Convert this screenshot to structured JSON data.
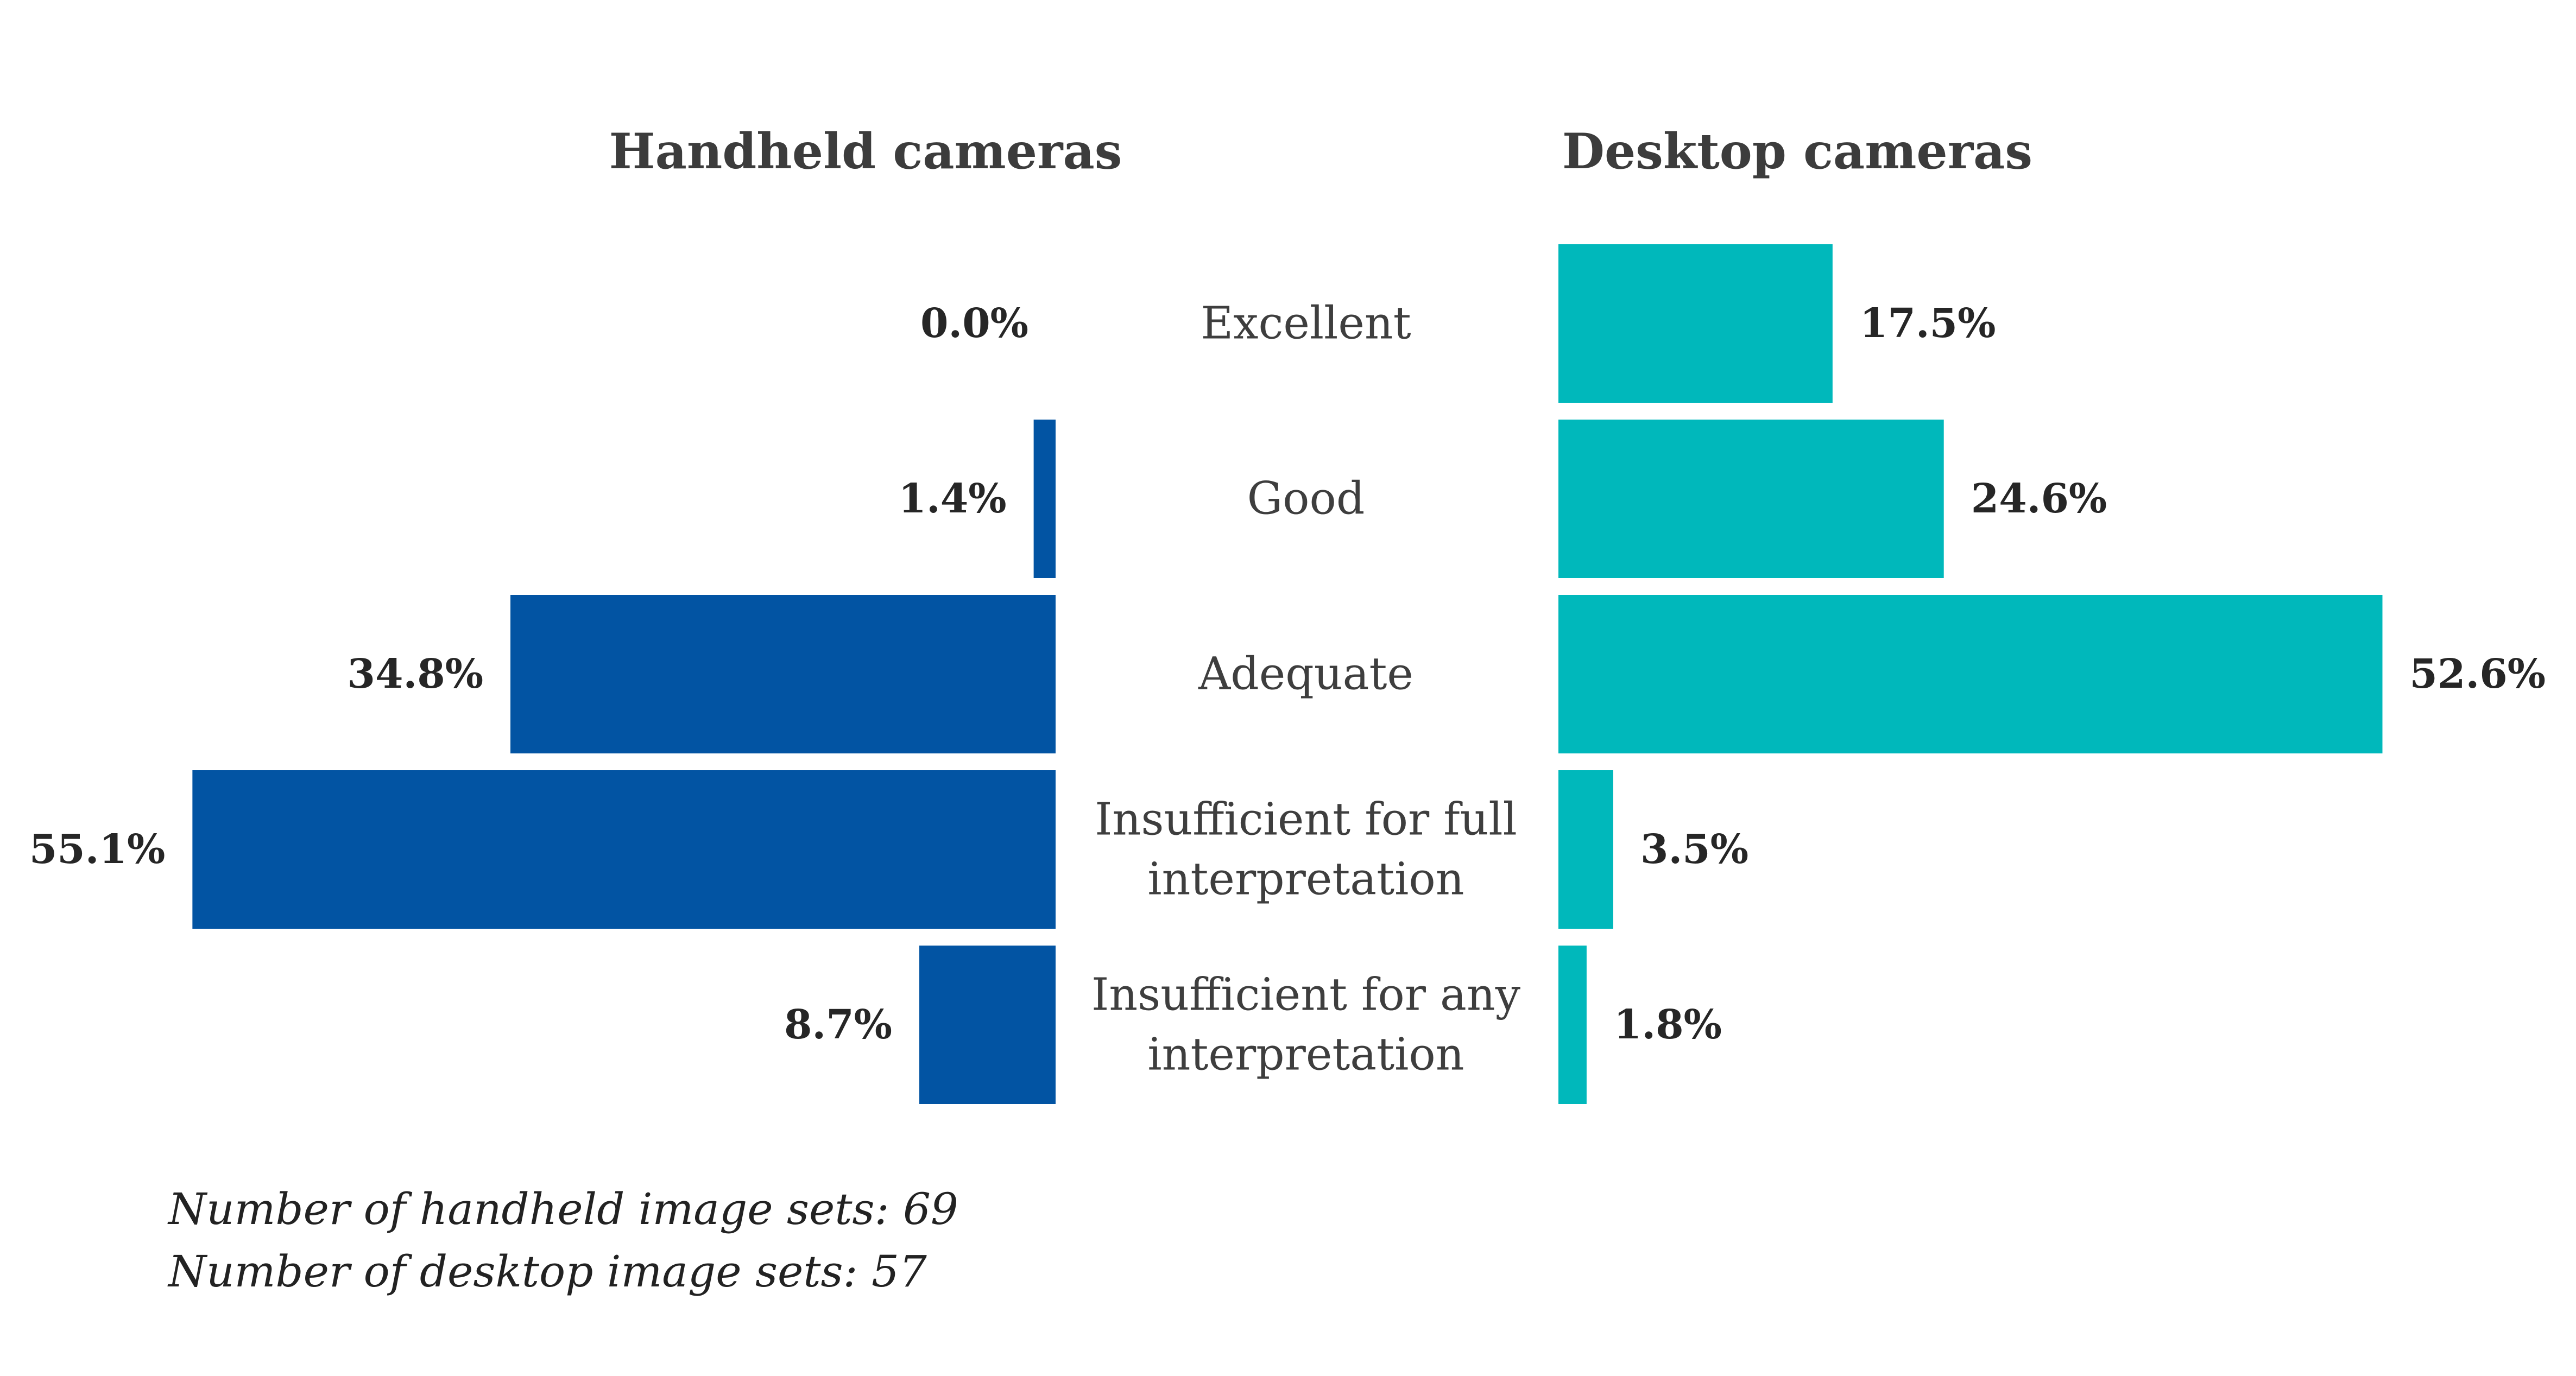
{
  "chart_data": {
    "type": "bar",
    "orientation": "horizontal",
    "layout": "back-to-back",
    "categories": [
      [
        "Excellent"
      ],
      [
        "Good"
      ],
      [
        "Adequate"
      ],
      [
        "Insufficient for full",
        "interpretation"
      ],
      [
        "Insufficient for any",
        "interpretation"
      ]
    ],
    "series": [
      {
        "name": "Handheld cameras",
        "side": "left",
        "color": "#0254a3",
        "values": [
          0.0,
          1.4,
          34.8,
          55.1,
          8.7
        ],
        "labels": [
          "0.0%",
          "1.4%",
          "34.8%",
          "55.1%",
          "8.7%"
        ]
      },
      {
        "name": "Desktop cameras",
        "side": "right",
        "color": "#00b8bb",
        "values": [
          17.5,
          24.6,
          52.6,
          3.5,
          1.8
        ],
        "labels": [
          "17.5%",
          "24.6%",
          "52.6%",
          "3.5%",
          "1.8%"
        ]
      }
    ],
    "value_unit": "%",
    "xlim": [
      0,
      55.1
    ],
    "grid": false,
    "legend": "none",
    "notes": [
      "Number of handheld image sets: 69",
      "Number of desktop image sets: 57"
    ]
  }
}
